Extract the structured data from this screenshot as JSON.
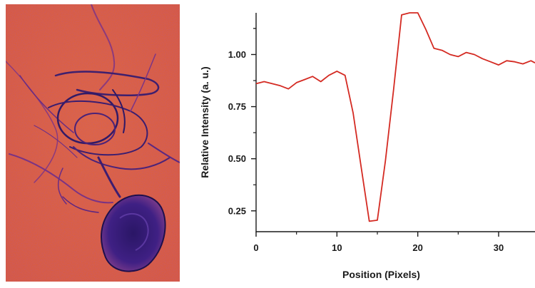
{
  "micrograph": {
    "description_colormap": "inferno-like false color",
    "colors": {
      "background": "#e8602a",
      "dark_structure": "#3a1a6a",
      "mid_structure": "#7a2d8a"
    }
  },
  "chart_data": {
    "type": "line",
    "title": "",
    "xlabel": "Position (Pixels)",
    "ylabel": "Relative Intensity (a. u.)",
    "xlim": [
      0,
      34.5
    ],
    "ylim": [
      0.15,
      1.2
    ],
    "xticks": [
      0,
      10,
      20,
      30
    ],
    "xtick_labels": [
      "0",
      "10",
      "20",
      "30"
    ],
    "yticks": [
      0.25,
      0.5,
      0.75,
      1.0
    ],
    "ytick_labels": [
      "0.25",
      "0.50",
      "0.75",
      "1.00"
    ],
    "grid": false,
    "legend": "none",
    "line_color": "#d42a22",
    "series": [
      {
        "x": [
          0,
          1,
          2,
          3,
          4,
          5,
          6,
          7,
          8,
          9,
          10,
          11,
          12,
          13,
          14,
          15,
          16,
          17,
          18,
          19,
          20,
          21,
          22,
          23,
          24,
          25,
          26,
          27,
          28,
          29,
          30,
          31,
          32,
          33,
          34,
          34.5
        ],
        "y": [
          0.86,
          0.87,
          0.86,
          0.85,
          0.835,
          0.865,
          0.88,
          0.895,
          0.87,
          0.9,
          0.92,
          0.9,
          0.72,
          0.46,
          0.2,
          0.205,
          0.49,
          0.83,
          1.19,
          1.2,
          1.2,
          1.12,
          1.03,
          1.02,
          1.0,
          0.99,
          1.01,
          1.0,
          0.98,
          0.965,
          0.95,
          0.97,
          0.965,
          0.955,
          0.97,
          0.96
        ]
      }
    ]
  }
}
